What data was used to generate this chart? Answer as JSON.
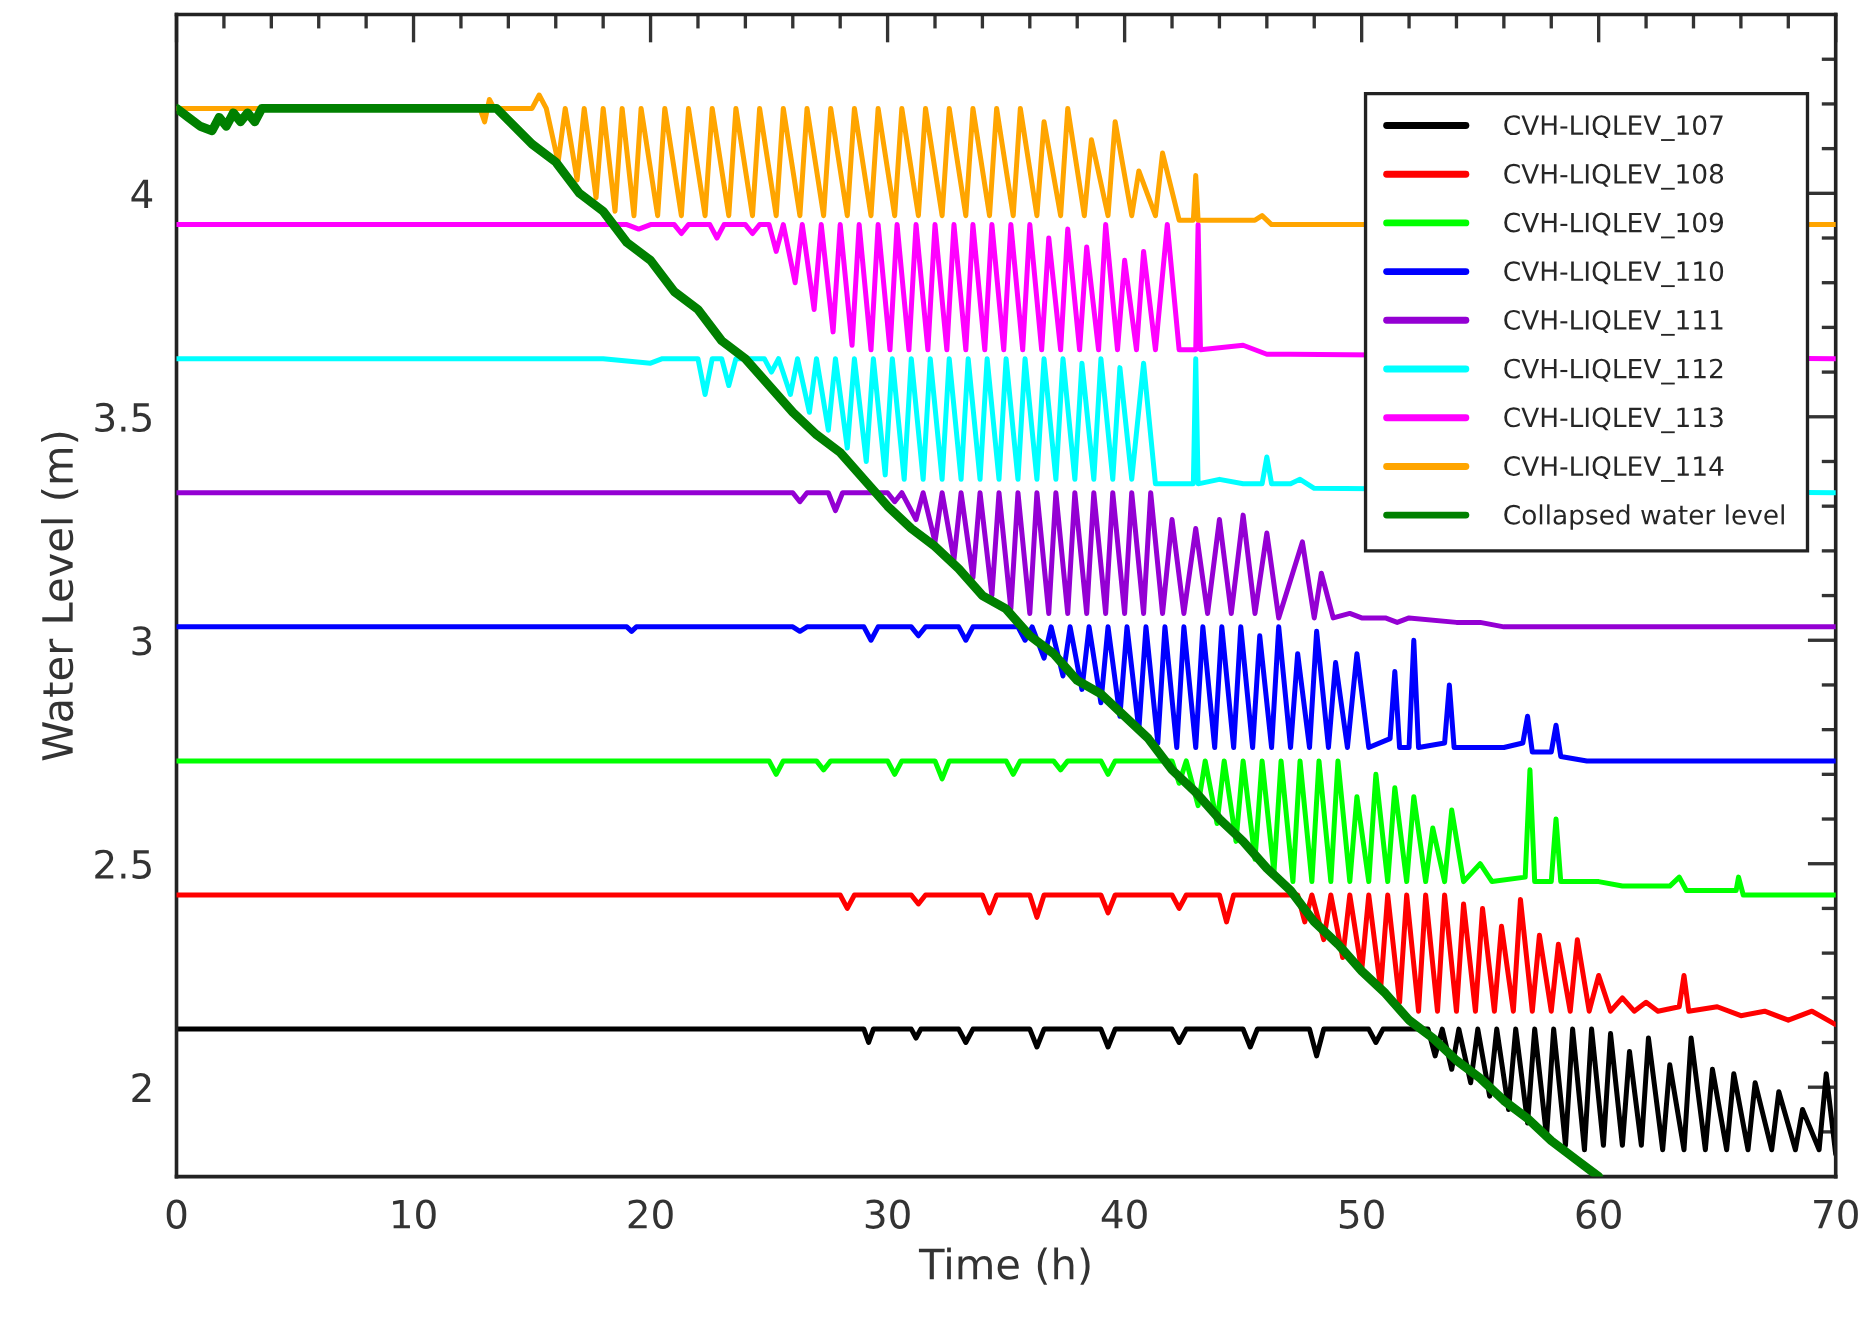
{
  "chart_data": {
    "type": "line",
    "xlabel": "Time (h)",
    "ylabel": "Water Level (m)",
    "xlim": [
      0,
      70
    ],
    "ylim": [
      1.8,
      4.4
    ],
    "xticks": [
      0,
      {
        "value": 2,
        "label": null
      },
      {
        "value": 4,
        "label": null
      },
      {
        "value": 6,
        "label": null
      },
      {
        "value": 8,
        "label": null
      },
      10,
      {
        "value": 12,
        "label": null
      },
      {
        "value": 14,
        "label": null
      },
      {
        "value": 16,
        "label": null
      },
      {
        "value": 18,
        "label": null
      },
      20,
      {
        "value": 22,
        "label": null
      },
      {
        "value": 24,
        "label": null
      },
      {
        "value": 26,
        "label": null
      },
      {
        "value": 28,
        "label": null
      },
      30,
      {
        "value": 32,
        "label": null
      },
      {
        "value": 34,
        "label": null
      },
      {
        "value": 36,
        "label": null
      },
      {
        "value": 38,
        "label": null
      },
      40,
      {
        "value": 42,
        "label": null
      },
      {
        "value": 44,
        "label": null
      },
      {
        "value": 46,
        "label": null
      },
      {
        "value": 48,
        "label": null
      },
      50,
      {
        "value": 52,
        "label": null
      },
      {
        "value": 54,
        "label": null
      },
      {
        "value": 56,
        "label": null
      },
      {
        "value": 58,
        "label": null
      },
      60,
      {
        "value": 62,
        "label": null
      },
      {
        "value": 64,
        "label": null
      },
      {
        "value": 66,
        "label": null
      },
      {
        "value": 68,
        "label": null
      },
      70
    ],
    "yticks": [
      {
        "value": 1.9,
        "label": null
      },
      2,
      {
        "value": 2.1,
        "label": null
      },
      {
        "value": 2.2,
        "label": null
      },
      {
        "value": 2.3,
        "label": null
      },
      {
        "value": 2.4,
        "label": null
      },
      2.5,
      {
        "value": 2.6,
        "label": null
      },
      {
        "value": 2.7,
        "label": null
      },
      {
        "value": 2.8,
        "label": null
      },
      {
        "value": 2.9,
        "label": null
      },
      3,
      {
        "value": 3.1,
        "label": null
      },
      {
        "value": 3.2,
        "label": null
      },
      {
        "value": 3.3,
        "label": null
      },
      {
        "value": 3.4,
        "label": null
      },
      3.5,
      {
        "value": 3.6,
        "label": null
      },
      {
        "value": 3.7,
        "label": null
      },
      {
        "value": 3.8,
        "label": null
      },
      {
        "value": 3.9,
        "label": null
      },
      4,
      {
        "value": 4.1,
        "label": null
      },
      {
        "value": 4.2,
        "label": null
      },
      {
        "value": 4.3,
        "label": null
      }
    ],
    "grid": false,
    "legend": "top right",
    "marker": "none",
    "line_style": "solid",
    "series": [
      {
        "name": "CVH-LIQLEV_107",
        "color": "#000000",
        "x": [
          0,
          27,
          29,
          29.2,
          29.4,
          31,
          31.2,
          31.4,
          33,
          33.3,
          33.6,
          36,
          36.3,
          36.6,
          39,
          39.3,
          39.6,
          42,
          42.3,
          42.6,
          45,
          45.3,
          45.6,
          47.8,
          48.1,
          48.4,
          50.3,
          50.6,
          50.9,
          52.8,
          53.1,
          53.4,
          53.8,
          54.1,
          54.6,
          54.9,
          55.4,
          55.7,
          56.2,
          56.5,
          57,
          57.3,
          57.8,
          58.1,
          58.6,
          58.9,
          59.4,
          59.7,
          60.2,
          60.5,
          61,
          61.3,
          61.8,
          62.1,
          62.7,
          63,
          63.6,
          63.9,
          64.5,
          64.8,
          65.4,
          65.7,
          66.3,
          66.6,
          67.3,
          67.6,
          68.3,
          68.6,
          69.3,
          69.6,
          70
        ],
        "values": [
          2.13,
          2.13,
          2.13,
          2.1,
          2.13,
          2.13,
          2.11,
          2.13,
          2.13,
          2.1,
          2.13,
          2.13,
          2.09,
          2.13,
          2.13,
          2.09,
          2.13,
          2.13,
          2.1,
          2.13,
          2.13,
          2.09,
          2.13,
          2.13,
          2.07,
          2.13,
          2.13,
          2.1,
          2.13,
          2.13,
          2.07,
          2.13,
          2.04,
          2.13,
          2.01,
          2.13,
          1.98,
          2.13,
          1.95,
          2.13,
          1.92,
          2.13,
          1.89,
          2.13,
          1.87,
          2.13,
          1.86,
          2.13,
          1.87,
          2.12,
          1.87,
          2.08,
          1.87,
          2.11,
          1.86,
          2.05,
          1.86,
          2.11,
          1.86,
          2.04,
          1.86,
          2.03,
          1.86,
          2.01,
          1.86,
          1.99,
          1.86,
          1.95,
          1.86,
          2.03,
          1.85
        ]
      },
      {
        "name": "CVH-LIQLEV_108",
        "color": "#ff0000",
        "x": [
          0,
          28,
          28.3,
          28.6,
          31,
          31.3,
          31.6,
          34,
          34.3,
          34.6,
          36,
          36.3,
          36.6,
          39,
          39.3,
          39.6,
          42,
          42.3,
          42.6,
          44,
          44.3,
          44.6,
          47.3,
          47.6,
          47.9,
          48.4,
          48.7,
          49.2,
          49.5,
          50,
          50.3,
          50.8,
          51.1,
          51.6,
          51.9,
          52.4,
          52.7,
          53.2,
          53.5,
          54,
          54.3,
          54.8,
          55.1,
          55.6,
          55.9,
          56.4,
          56.7,
          57.2,
          57.5,
          58,
          58.3,
          58.8,
          59.1,
          59.6,
          60,
          60.5,
          61,
          61.5,
          62,
          62.5,
          63.4,
          63.6,
          63.8,
          65,
          66,
          67,
          68,
          69,
          70
        ],
        "values": [
          2.43,
          2.43,
          2.4,
          2.43,
          2.43,
          2.41,
          2.43,
          2.43,
          2.39,
          2.43,
          2.43,
          2.38,
          2.43,
          2.43,
          2.39,
          2.43,
          2.43,
          2.4,
          2.43,
          2.43,
          2.37,
          2.43,
          2.43,
          2.37,
          2.43,
          2.33,
          2.43,
          2.29,
          2.43,
          2.26,
          2.43,
          2.22,
          2.43,
          2.19,
          2.43,
          2.17,
          2.43,
          2.17,
          2.43,
          2.17,
          2.41,
          2.17,
          2.4,
          2.17,
          2.36,
          2.17,
          2.42,
          2.17,
          2.34,
          2.17,
          2.32,
          2.17,
          2.33,
          2.17,
          2.25,
          2.17,
          2.2,
          2.17,
          2.19,
          2.17,
          2.18,
          2.25,
          2.17,
          2.18,
          2.16,
          2.17,
          2.15,
          2.17,
          2.14
        ]
      },
      {
        "name": "CVH-LIQLEV_109",
        "color": "#00ff00",
        "x": [
          0,
          25,
          25.3,
          25.6,
          27,
          27.3,
          27.6,
          30,
          30.3,
          30.6,
          32,
          32.3,
          32.6,
          35,
          35.3,
          35.6,
          37,
          37.3,
          37.6,
          39,
          39.3,
          39.6,
          42,
          42.3,
          42.6,
          43.1,
          43.4,
          43.9,
          44.2,
          44.7,
          45,
          45.5,
          45.8,
          46.3,
          46.6,
          47.1,
          47.4,
          47.9,
          48.2,
          48.7,
          49,
          49.5,
          49.8,
          50.3,
          50.6,
          51.1,
          51.4,
          51.9,
          52.2,
          52.7,
          53,
          53.5,
          53.8,
          54.3,
          55,
          55.5,
          56.9,
          57.1,
          57.3,
          58,
          58.2,
          58.4,
          60,
          61,
          63,
          63.4,
          63.7,
          65.8,
          65.9,
          66.1,
          70
        ],
        "values": [
          2.73,
          2.73,
          2.7,
          2.73,
          2.73,
          2.71,
          2.73,
          2.73,
          2.7,
          2.73,
          2.73,
          2.69,
          2.73,
          2.73,
          2.7,
          2.73,
          2.73,
          2.71,
          2.73,
          2.73,
          2.7,
          2.73,
          2.73,
          2.68,
          2.73,
          2.63,
          2.73,
          2.59,
          2.73,
          2.55,
          2.73,
          2.51,
          2.73,
          2.48,
          2.73,
          2.46,
          2.73,
          2.46,
          2.73,
          2.46,
          2.73,
          2.46,
          2.65,
          2.46,
          2.7,
          2.46,
          2.67,
          2.46,
          2.65,
          2.46,
          2.58,
          2.46,
          2.62,
          2.46,
          2.5,
          2.46,
          2.47,
          2.71,
          2.46,
          2.46,
          2.6,
          2.46,
          2.46,
          2.45,
          2.45,
          2.47,
          2.44,
          2.44,
          2.47,
          2.43,
          2.43
        ]
      },
      {
        "name": "CVH-LIQLEV_110",
        "color": "#0000ff",
        "x": [
          0,
          19,
          19.2,
          19.4,
          26,
          26.3,
          26.6,
          29,
          29.3,
          29.6,
          31,
          31.3,
          31.6,
          33,
          33.3,
          33.6,
          35.5,
          35.8,
          36.1,
          36.6,
          36.9,
          37.4,
          37.7,
          38.2,
          38.5,
          39,
          39.3,
          39.8,
          40.1,
          40.6,
          40.9,
          41.4,
          41.7,
          42.2,
          42.5,
          43,
          43.3,
          43.8,
          44.1,
          44.6,
          44.9,
          45.4,
          45.7,
          46.2,
          46.5,
          47,
          47.3,
          47.8,
          48.1,
          48.6,
          48.9,
          49.4,
          49.8,
          50.3,
          51.2,
          51.4,
          51.6,
          52,
          52.2,
          52.4,
          53.5,
          53.7,
          53.9,
          56,
          56.8,
          57,
          57.2,
          58,
          58.2,
          58.4,
          59.5,
          70
        ],
        "values": [
          3.03,
          3.03,
          3.02,
          3.03,
          3.03,
          3.02,
          3.03,
          3.03,
          3.0,
          3.03,
          3.03,
          3.01,
          3.03,
          3.03,
          3.0,
          3.03,
          3.03,
          3.0,
          3.03,
          2.96,
          3.03,
          2.92,
          3.03,
          2.89,
          3.03,
          2.86,
          3.03,
          2.83,
          3.03,
          2.8,
          3.03,
          2.77,
          3.03,
          2.76,
          3.03,
          2.76,
          3.03,
          2.76,
          3.03,
          2.76,
          3.03,
          2.76,
          3.01,
          2.76,
          3.03,
          2.76,
          2.97,
          2.76,
          3.02,
          2.76,
          2.95,
          2.76,
          2.97,
          2.76,
          2.78,
          2.93,
          2.76,
          2.76,
          3.0,
          2.76,
          2.77,
          2.9,
          2.76,
          2.76,
          2.77,
          2.83,
          2.75,
          2.75,
          2.81,
          2.74,
          2.73,
          2.73
        ]
      },
      {
        "name": "CVH-LIQLEV_111",
        "color": "#9400d3",
        "x": [
          0,
          26,
          26.3,
          26.6,
          27.5,
          27.8,
          28.1,
          30,
          30.3,
          30.6,
          31.2,
          31.5,
          32,
          32.3,
          32.8,
          33.1,
          33.6,
          33.9,
          34.4,
          34.7,
          35.2,
          35.5,
          36,
          36.3,
          36.8,
          37.1,
          37.6,
          37.9,
          38.4,
          38.7,
          39.2,
          39.5,
          40,
          40.3,
          40.8,
          41.1,
          41.6,
          42,
          42.5,
          43,
          43.5,
          44,
          44.5,
          45,
          45.5,
          46,
          46.5,
          47.5,
          48,
          48.3,
          48.8,
          49.5,
          50,
          51,
          51.5,
          52,
          54,
          55,
          56,
          70
        ],
        "values": [
          3.33,
          3.33,
          3.31,
          3.33,
          3.33,
          3.29,
          3.33,
          3.33,
          3.31,
          3.33,
          3.27,
          3.33,
          3.22,
          3.33,
          3.18,
          3.33,
          3.14,
          3.33,
          3.1,
          3.33,
          3.07,
          3.33,
          3.06,
          3.33,
          3.06,
          3.33,
          3.06,
          3.33,
          3.06,
          3.33,
          3.06,
          3.33,
          3.06,
          3.33,
          3.06,
          3.33,
          3.06,
          3.27,
          3.06,
          3.25,
          3.06,
          3.27,
          3.06,
          3.28,
          3.06,
          3.24,
          3.05,
          3.22,
          3.05,
          3.15,
          3.05,
          3.06,
          3.05,
          3.05,
          3.04,
          3.05,
          3.04,
          3.04,
          3.03,
          3.03
        ]
      },
      {
        "name": "CVH-LIQLEV_112",
        "color": "#00ffff",
        "x": [
          0,
          18,
          20,
          20.5,
          22,
          22.3,
          22.6,
          23,
          23.3,
          23.6,
          24.8,
          25.1,
          25.4,
          25.9,
          26.2,
          26.7,
          27,
          27.5,
          27.8,
          28.3,
          28.6,
          29.1,
          29.4,
          29.9,
          30.2,
          30.7,
          31,
          31.5,
          31.8,
          32.3,
          32.6,
          33.1,
          33.4,
          33.9,
          34.2,
          34.7,
          35,
          35.5,
          35.8,
          36.3,
          36.6,
          37.1,
          37.4,
          37.9,
          38.2,
          38.7,
          39,
          39.5,
          39.8,
          40.3,
          40.8,
          41.3,
          42,
          42.9,
          43,
          43.1,
          44,
          45,
          45.8,
          46,
          46.2,
          47,
          47.4,
          48,
          70
        ],
        "values": [
          3.63,
          3.63,
          3.62,
          3.63,
          3.63,
          3.55,
          3.63,
          3.63,
          3.57,
          3.63,
          3.63,
          3.6,
          3.63,
          3.55,
          3.63,
          3.51,
          3.63,
          3.47,
          3.63,
          3.43,
          3.63,
          3.4,
          3.63,
          3.37,
          3.63,
          3.36,
          3.63,
          3.36,
          3.63,
          3.36,
          3.63,
          3.36,
          3.63,
          3.36,
          3.63,
          3.36,
          3.63,
          3.36,
          3.63,
          3.36,
          3.63,
          3.36,
          3.63,
          3.36,
          3.62,
          3.36,
          3.63,
          3.36,
          3.61,
          3.36,
          3.62,
          3.35,
          3.35,
          3.35,
          3.63,
          3.35,
          3.36,
          3.35,
          3.35,
          3.41,
          3.35,
          3.35,
          3.36,
          3.34,
          3.33
        ]
      },
      {
        "name": "CVH-LIQLEV_113",
        "color": "#ff00ff",
        "x": [
          0,
          19,
          19.5,
          20,
          21,
          21.3,
          21.6,
          22.5,
          22.8,
          23.1,
          24,
          24.3,
          24.6,
          25,
          25.3,
          25.6,
          26.1,
          26.4,
          26.9,
          27.2,
          27.7,
          28,
          28.5,
          28.8,
          29.3,
          29.6,
          30.1,
          30.4,
          30.9,
          31.2,
          31.7,
          32,
          32.5,
          32.8,
          33.3,
          33.6,
          34.1,
          34.4,
          34.9,
          35.2,
          35.7,
          36,
          36.5,
          36.8,
          37.3,
          37.6,
          38.1,
          38.4,
          38.9,
          39.2,
          39.7,
          40,
          40.5,
          40.8,
          41.3,
          41.8,
          42.3,
          43,
          43.1,
          43.2,
          45,
          46,
          47,
          70
        ],
        "values": [
          3.93,
          3.93,
          3.92,
          3.93,
          3.93,
          3.91,
          3.93,
          3.93,
          3.9,
          3.93,
          3.93,
          3.91,
          3.93,
          3.93,
          3.87,
          3.93,
          3.8,
          3.93,
          3.74,
          3.93,
          3.69,
          3.93,
          3.66,
          3.93,
          3.65,
          3.93,
          3.65,
          3.93,
          3.65,
          3.93,
          3.65,
          3.93,
          3.65,
          3.93,
          3.65,
          3.93,
          3.65,
          3.93,
          3.65,
          3.93,
          3.65,
          3.93,
          3.65,
          3.9,
          3.65,
          3.92,
          3.65,
          3.88,
          3.65,
          3.93,
          3.65,
          3.85,
          3.65,
          3.87,
          3.65,
          3.93,
          3.65,
          3.65,
          3.93,
          3.65,
          3.66,
          3.64,
          3.64,
          3.63
        ]
      },
      {
        "name": "CVH-LIQLEV_114",
        "color": "#ffa500",
        "x": [
          0,
          12.8,
          13,
          13.2,
          13.4,
          15,
          15.3,
          15.6,
          16.1,
          16.4,
          16.9,
          17.2,
          17.7,
          18,
          18.5,
          18.8,
          19.3,
          19.6,
          20.3,
          20.6,
          21.3,
          21.6,
          22.3,
          22.6,
          23.3,
          23.6,
          24.3,
          24.6,
          25.3,
          25.6,
          26.3,
          26.6,
          27.3,
          27.6,
          28.3,
          28.6,
          29.3,
          29.6,
          30.3,
          30.6,
          31.3,
          31.6,
          32.3,
          32.6,
          33.3,
          33.6,
          34.3,
          34.6,
          35.3,
          35.6,
          36.3,
          36.6,
          37.3,
          37.6,
          38.3,
          38.6,
          39.3,
          39.6,
          40.3,
          40.6,
          41.3,
          41.6,
          42.3,
          42.9,
          43,
          43.1,
          45.5,
          45.8,
          46.2,
          70
        ],
        "values": [
          4.19,
          4.19,
          4.16,
          4.21,
          4.19,
          4.19,
          4.22,
          4.19,
          4.07,
          4.19,
          4.03,
          4.19,
          3.99,
          4.19,
          3.96,
          4.19,
          3.95,
          4.19,
          3.95,
          4.19,
          3.95,
          4.19,
          3.95,
          4.19,
          3.95,
          4.19,
          3.95,
          4.19,
          3.95,
          4.19,
          3.95,
          4.19,
          3.95,
          4.19,
          3.95,
          4.19,
          3.95,
          4.19,
          3.95,
          4.19,
          3.95,
          4.19,
          3.95,
          4.19,
          3.95,
          4.19,
          3.95,
          4.19,
          3.95,
          4.19,
          3.95,
          4.16,
          3.95,
          4.19,
          3.95,
          4.12,
          3.95,
          4.16,
          3.95,
          4.05,
          3.95,
          4.09,
          3.94,
          3.94,
          4.04,
          3.94,
          3.94,
          3.95,
          3.93,
          3.93
        ]
      },
      {
        "name": "Collapsed water level",
        "color": "#008000",
        "x": [
          0,
          0.5,
          1,
          1.5,
          1.8,
          2.1,
          2.4,
          2.7,
          3,
          3.3,
          3.6,
          13.5,
          15,
          16,
          17,
          18,
          19,
          20,
          21,
          22,
          23,
          24,
          25,
          26,
          27,
          28,
          29,
          30,
          31,
          32,
          33,
          34,
          35,
          36,
          37,
          38,
          39,
          40,
          41,
          42,
          43,
          44,
          45,
          46,
          47,
          48,
          49,
          50,
          51,
          52,
          53,
          54,
          55,
          56,
          57,
          58,
          59,
          60
        ],
        "values": [
          4.19,
          4.17,
          4.15,
          4.14,
          4.17,
          4.15,
          4.18,
          4.16,
          4.18,
          4.16,
          4.19,
          4.19,
          4.11,
          4.07,
          4.0,
          3.96,
          3.89,
          3.85,
          3.78,
          3.74,
          3.67,
          3.63,
          3.57,
          3.51,
          3.46,
          3.42,
          3.36,
          3.3,
          3.25,
          3.21,
          3.16,
          3.1,
          3.07,
          3.01,
          2.97,
          2.91,
          2.88,
          2.83,
          2.78,
          2.71,
          2.66,
          2.6,
          2.55,
          2.49,
          2.44,
          2.37,
          2.32,
          2.26,
          2.21,
          2.15,
          2.11,
          2.06,
          2.02,
          1.97,
          1.93,
          1.88,
          1.84,
          1.8
        ]
      }
    ]
  }
}
